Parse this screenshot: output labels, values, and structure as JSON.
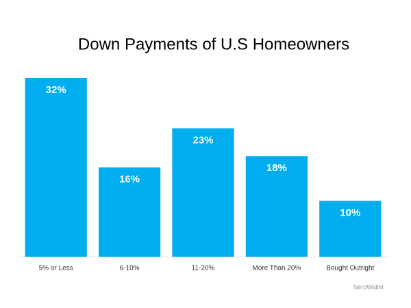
{
  "chart_data": {
    "type": "bar",
    "title": "Down Payments of U.S Homeowners",
    "categories": [
      "5% or Less",
      "6-10%",
      "11-20%",
      "More Than 20%",
      "Bought Outright"
    ],
    "values": [
      32,
      16,
      23,
      18,
      10
    ],
    "value_labels": [
      "32%",
      "16%",
      "23%",
      "18%",
      "10%"
    ],
    "color": "#00adef",
    "source": "NerdWallet"
  }
}
